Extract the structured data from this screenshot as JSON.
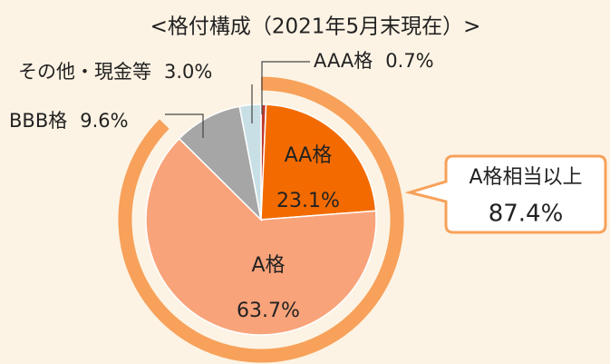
{
  "chart_data": {
    "type": "pie",
    "title": "<格付構成（2021年5月末現在）>",
    "categories": [
      "AAA格",
      "AA格",
      "A格",
      "BBB格",
      "その他・現金等"
    ],
    "values": [
      0.7,
      23.1,
      63.7,
      9.6,
      3.0
    ],
    "value_labels": [
      "0.7%",
      "23.1%",
      "63.7%",
      "9.6%",
      "3.0%"
    ],
    "colors": [
      "#c0392b",
      "#f36b00",
      "#f9a37a",
      "#a6a6a6",
      "#c8dfe6"
    ],
    "annotation": {
      "label": "A格相当以上",
      "value": 87.4,
      "value_label": "87.4%",
      "color": "#f7a15a"
    }
  }
}
